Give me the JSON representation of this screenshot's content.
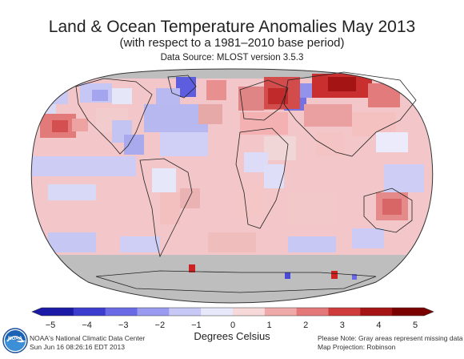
{
  "header": {
    "title": "Land & Ocean Temperature Anomalies May 2013",
    "subtitle": "(with respect to a 1981–2010 base period)",
    "source": "Data Source: MLOST version 3.5.3"
  },
  "map": {
    "missing_data_color": "#bebebe",
    "ocean_base_color": "#f3c7c9",
    "regions": [
      {
        "name": "north-atlantic-blue",
        "anomaly": -1.5
      },
      {
        "name": "greenland",
        "anomaly": -2.5
      },
      {
        "name": "western-russia",
        "anomaly": 4.0
      },
      {
        "name": "central-siberia",
        "anomaly": 4.5
      },
      {
        "name": "scandinavia",
        "anomaly": -3.0
      },
      {
        "name": "australia",
        "anomaly": 2.0
      },
      {
        "name": "east-pacific-north",
        "anomaly": 2.5
      },
      {
        "name": "tropical-pacific",
        "anomaly": -0.8
      },
      {
        "name": "southern-ocean",
        "anomaly": -0.5
      }
    ]
  },
  "colorbar": {
    "ticks": [
      "−5",
      "−4",
      "−3",
      "−2",
      "−1",
      "0",
      "1",
      "2",
      "3",
      "4",
      "5"
    ],
    "unit": "Degrees Celsius",
    "colors": [
      "#1a1aa6",
      "#3c3ccf",
      "#6a6ae6",
      "#9a9af0",
      "#c8c8f7",
      "#e8e8fb",
      "#f8d9d9",
      "#f0a9a9",
      "#e47878",
      "#cf3c3c",
      "#a51414",
      "#7a0000"
    ]
  },
  "footer": {
    "center_name": "NOAA's National Climatic Data Center",
    "timestamp": "Sun Jun 16 08:26:16 EDT 2013",
    "note": "Please Note: Gray areas represent missing data",
    "projection": "Map Projection: Robinson"
  },
  "logo": {
    "label": "NOAA"
  }
}
